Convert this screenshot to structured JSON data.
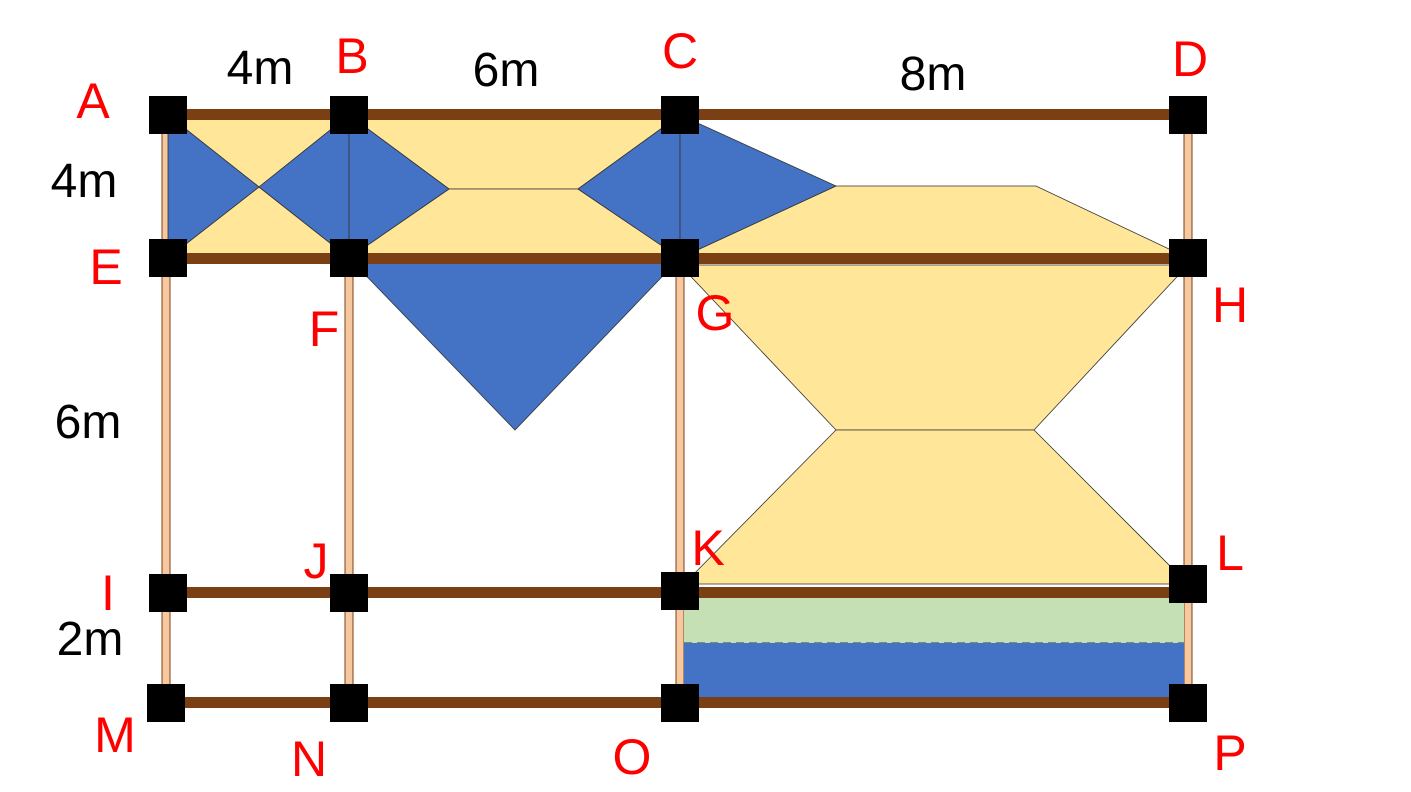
{
  "diagram": {
    "dimensions": {
      "top": [
        "4m",
        "6m",
        "8m"
      ],
      "left": [
        "4m",
        "6m",
        "2m"
      ]
    },
    "nodes": [
      "A",
      "B",
      "C",
      "D",
      "E",
      "F",
      "G",
      "H",
      "I",
      "J",
      "K",
      "L",
      "M",
      "N",
      "O",
      "P"
    ],
    "colors": {
      "beam": "#7b3f14",
      "column": "#f5c8a0",
      "yellow_load": "#ffe699",
      "blue_load": "#4472c4",
      "green_load": "#c5e0b4",
      "node_fill": "#000000",
      "label": "#ff0000"
    }
  }
}
